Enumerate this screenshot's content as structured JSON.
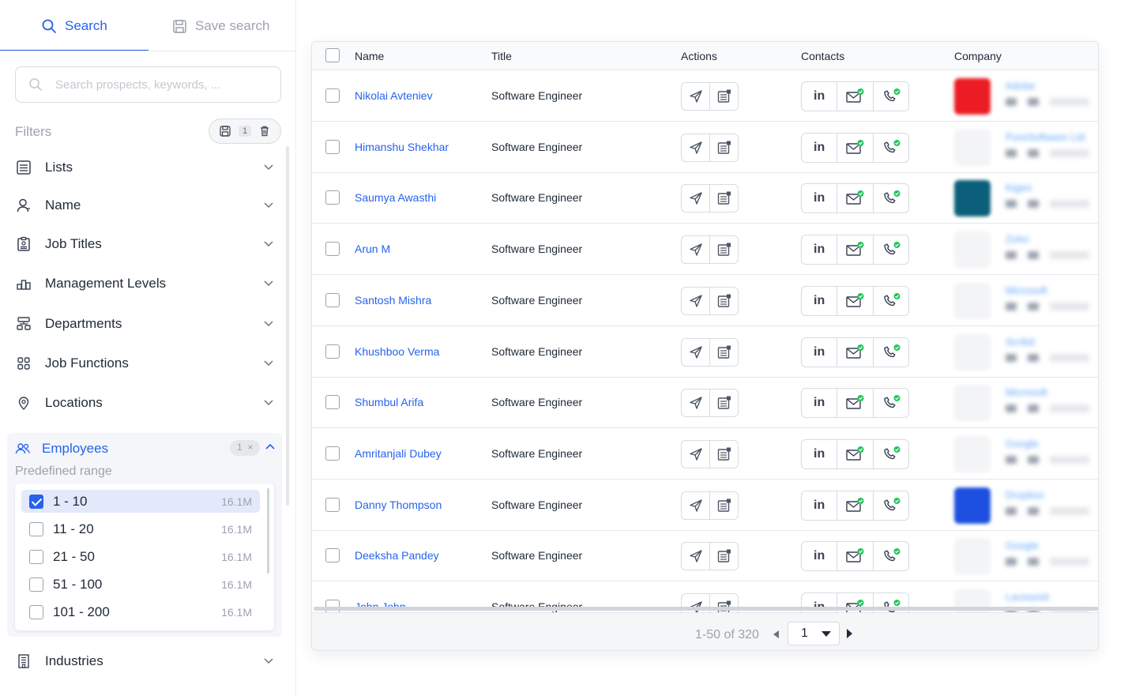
{
  "tabs": {
    "search": "Search",
    "save_search": "Save search"
  },
  "search": {
    "placeholder": "Search prospects, keywords, ..."
  },
  "filters": {
    "label": "Filters",
    "count_badge": "1",
    "items": [
      {
        "label": "Lists",
        "icon": "list-icon"
      },
      {
        "label": "Name",
        "icon": "person-icon"
      },
      {
        "label": "Job Titles",
        "icon": "id-badge-icon"
      },
      {
        "label": "Management Levels",
        "icon": "levels-icon"
      },
      {
        "label": "Departments",
        "icon": "departments-icon"
      },
      {
        "label": "Job Functions",
        "icon": "grid-icon"
      },
      {
        "label": "Locations",
        "icon": "location-pin-icon"
      }
    ],
    "employees": {
      "label": "Employees",
      "badge": "1",
      "badge_close": "×",
      "subtitle": "Predefined range",
      "ranges": [
        {
          "label": "1 - 10",
          "count": "16.1M",
          "checked": true
        },
        {
          "label": "11 - 20",
          "count": "16.1M",
          "checked": false
        },
        {
          "label": "21 - 50",
          "count": "16.1M",
          "checked": false
        },
        {
          "label": "51 - 100",
          "count": "16.1M",
          "checked": false
        },
        {
          "label": "101 - 200",
          "count": "16.1M",
          "checked": false
        }
      ]
    },
    "industries": {
      "label": "Industries",
      "icon": "building-icon"
    }
  },
  "table": {
    "headers": [
      "Name",
      "Title",
      "Actions",
      "Contacts",
      "Company"
    ],
    "rows": [
      {
        "name": "Nikolai Avteniev",
        "title": "Software Engineer",
        "company": "Adobe",
        "logo_color": "#ec1c24"
      },
      {
        "name": "Himanshu Shekhar",
        "title": "Software Engineer",
        "company": "PureSoftware Ltd",
        "logo_color": "#f3f4f6"
      },
      {
        "name": "Saumya Awasthi",
        "title": "Software Engineer",
        "company": "Kigen",
        "logo_color": "#0b5f7a"
      },
      {
        "name": "Arun M",
        "title": "Software Engineer",
        "company": "Zoho",
        "logo_color": "#f3f4f6"
      },
      {
        "name": "Santosh Mishra",
        "title": "Software Engineer",
        "company": "Microsoft",
        "logo_color": "#f3f4f6"
      },
      {
        "name": "Khushboo Verma",
        "title": "Software Engineer",
        "company": "Scribd",
        "logo_color": "#f3f4f6"
      },
      {
        "name": "Shumbul Arifa",
        "title": "Software Engineer",
        "company": "Microsoft",
        "logo_color": "#f3f4f6"
      },
      {
        "name": "Amritanjali Dubey",
        "title": "Software Engineer",
        "company": "Google",
        "logo_color": "#f3f4f6"
      },
      {
        "name": "Danny Thompson",
        "title": "Software Engineer",
        "company": "Dropbox",
        "logo_color": "#1d4fe0"
      },
      {
        "name": "Deeksha Pandey",
        "title": "Software Engineer",
        "company": "Google",
        "logo_color": "#f3f4f6"
      },
      {
        "name": "John John",
        "title": "Software Engineer",
        "company": "Lacework",
        "logo_color": "#f3f4f6"
      }
    ]
  },
  "pagination": {
    "info": "1-50 of 320",
    "page": "1"
  },
  "colors": {
    "accent": "#2563eb",
    "success": "#22c55e"
  }
}
